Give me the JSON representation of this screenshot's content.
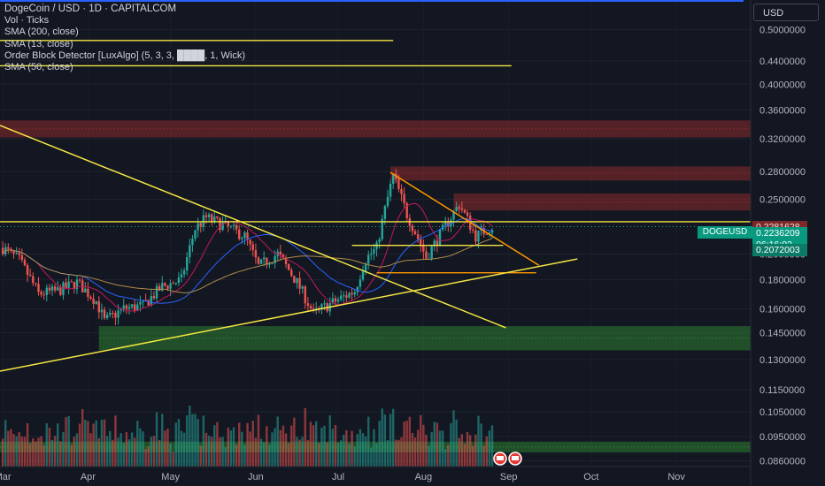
{
  "legend": {
    "title": "DogeCoin / USD · 1D · CAPITALCOM",
    "vol": "Vol · Ticks",
    "sma200": "SMA (200, close)",
    "sma13": "SMA (13, close)",
    "ob": "Order Block Detector [LuxAlgo] (5, 3, 3, ████, 1, Wick)",
    "sma50": "SMA (50, close)"
  },
  "currency_button": "USD",
  "symbol_tag": "DOGEUSD",
  "last_price_label": "0.2236209",
  "countdown_label": "06:16:02",
  "support_label": "0.2072003",
  "hidden_price_label": "0.2281628",
  "colors": {
    "background": "#131722",
    "up": "#26a69a",
    "down": "#ef5350",
    "trendline": "#f5e642",
    "sma200": "#b08a4a",
    "sma50": "#2962ff",
    "sma13": "#c2185b",
    "wedge": "#ff9800",
    "bear_zone": "#8b2a2a",
    "bull_zone": "#2e7d32"
  },
  "chart_data": {
    "type": "candlestick",
    "symbol": "DOGEUSD",
    "interval": "1D",
    "exchange": "CAPITALCOM",
    "y_scale": "log",
    "ylim": [
      0.084,
      0.56
    ],
    "y_ticks": [
      "0.5000000",
      "0.4400000",
      "0.4000000",
      "0.3600000",
      "0.3200000",
      "0.2800000",
      "0.2500000",
      "0.2000000",
      "0.1800000",
      "0.1600000",
      "0.1450000",
      "0.1300000",
      "0.1150000",
      "0.1050000",
      "0.0950000",
      "0.0860000"
    ],
    "x_ticks": [
      "Mar",
      "Apr",
      "May",
      "Jun",
      "Jul",
      "Aug",
      "Sep",
      "Oct",
      "Nov"
    ],
    "last_price": 0.2236209,
    "price_path": [
      [
        "2025-03-01",
        0.205
      ],
      [
        "2025-03-07",
        0.195
      ],
      [
        "2025-03-14",
        0.17
      ],
      [
        "2025-03-21",
        0.172
      ],
      [
        "2025-03-28",
        0.178
      ],
      [
        "2025-04-04",
        0.165
      ],
      [
        "2025-04-07",
        0.152
      ],
      [
        "2025-04-14",
        0.16
      ],
      [
        "2025-04-21",
        0.162
      ],
      [
        "2025-04-28",
        0.175
      ],
      [
        "2025-05-05",
        0.18
      ],
      [
        "2025-05-10",
        0.222
      ],
      [
        "2025-05-14",
        0.232
      ],
      [
        "2025-05-21",
        0.224
      ],
      [
        "2025-05-28",
        0.215
      ],
      [
        "2025-06-02",
        0.19
      ],
      [
        "2025-06-09",
        0.2
      ],
      [
        "2025-06-16",
        0.178
      ],
      [
        "2025-06-22",
        0.157
      ],
      [
        "2025-06-30",
        0.165
      ],
      [
        "2025-07-07",
        0.172
      ],
      [
        "2025-07-11",
        0.196
      ],
      [
        "2025-07-15",
        0.205
      ],
      [
        "2025-07-21",
        0.275
      ],
      [
        "2025-07-26",
        0.235
      ],
      [
        "2025-08-02",
        0.197
      ],
      [
        "2025-08-08",
        0.22
      ],
      [
        "2025-08-14",
        0.245
      ],
      [
        "2025-08-20",
        0.215
      ],
      [
        "2025-08-26",
        0.2236209
      ]
    ],
    "horizontal_levels": [
      0.4781,
      0.4312,
      0.2281628,
      0.2072003,
      0.1853
    ],
    "zones": [
      {
        "kind": "bearish",
        "from": 0.322,
        "to": 0.345
      },
      {
        "kind": "bearish",
        "from": 0.27,
        "to": 0.286
      },
      {
        "kind": "bearish",
        "from": 0.239,
        "to": 0.256
      },
      {
        "kind": "bullish",
        "from": 0.135,
        "to": 0.149
      },
      {
        "kind": "bullish",
        "from": 0.089,
        "to": 0.093
      }
    ],
    "trendlines": [
      {
        "from": [
          "2025-02-28",
          0.338
        ],
        "to": [
          "2025-08-31",
          0.148
        ]
      },
      {
        "from": [
          "2025-02-28",
          0.124
        ],
        "to": [
          "2025-09-26",
          0.196
        ]
      },
      {
        "from": [
          "2025-07-20",
          0.279
        ],
        "to": [
          "2025-09-12",
          0.191
        ]
      }
    ]
  }
}
